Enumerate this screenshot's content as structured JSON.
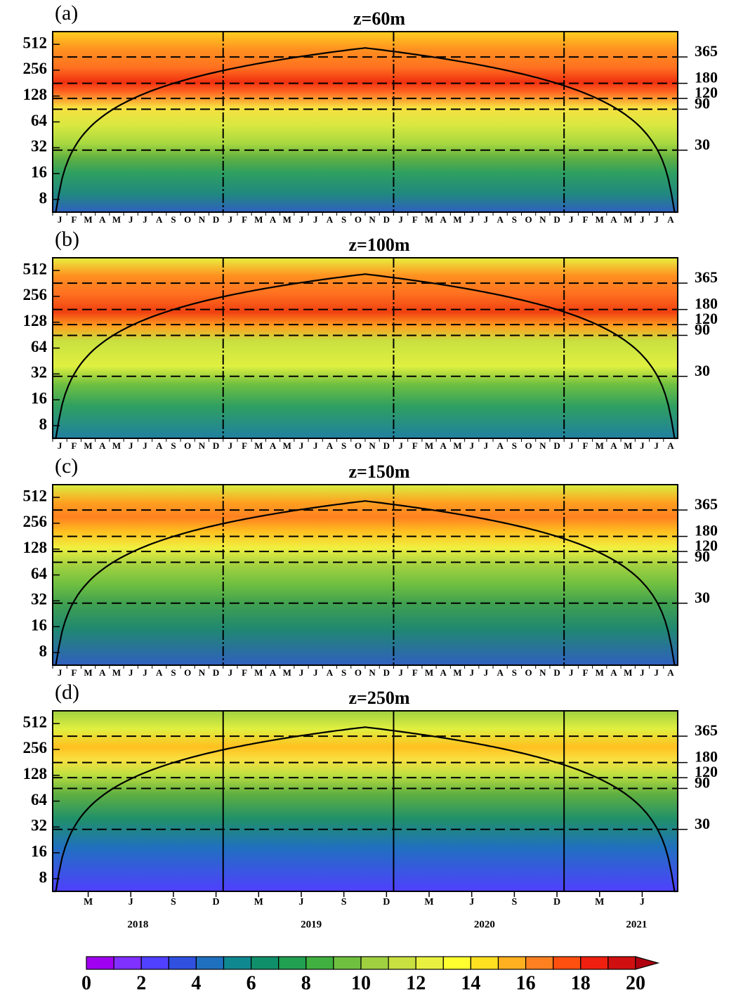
{
  "chart_data": [
    {
      "type": "heatmap",
      "panel_label": "(a)",
      "title": "z=60m",
      "log_scale": true,
      "ylim": [
        5.7,
        720
      ],
      "yticks": [
        8,
        16,
        32,
        64,
        128,
        256,
        512
      ],
      "y2ticks": [
        30,
        90,
        120,
        180,
        365
      ],
      "categories": [
        "J",
        "F",
        "M",
        "A",
        "M",
        "J",
        "J",
        "A",
        "S",
        "O",
        "N",
        "D",
        "J",
        "F",
        "M",
        "A",
        "M",
        "J",
        "J",
        "A",
        "S",
        "O",
        "N",
        "D",
        "J",
        "F",
        "M",
        "A",
        "M",
        "J",
        "J",
        "A",
        "S",
        "O",
        "N",
        "D",
        "J",
        "F",
        "M",
        "A",
        "M",
        "J",
        "J",
        "A"
      ]
    },
    {
      "type": "heatmap",
      "panel_label": "(b)",
      "title": "z=100m",
      "log_scale": true,
      "ylim": [
        5.7,
        720
      ],
      "yticks": [
        8,
        16,
        32,
        64,
        128,
        256,
        512
      ],
      "y2ticks": [
        30,
        90,
        120,
        180,
        365
      ],
      "categories": [
        "J",
        "F",
        "M",
        "A",
        "M",
        "J",
        "J",
        "A",
        "S",
        "O",
        "N",
        "D",
        "J",
        "F",
        "M",
        "A",
        "M",
        "J",
        "J",
        "A",
        "S",
        "O",
        "N",
        "D",
        "J",
        "F",
        "M",
        "A",
        "M",
        "J",
        "J",
        "A",
        "S",
        "O",
        "N",
        "D",
        "J",
        "F",
        "M",
        "A",
        "M",
        "J",
        "J",
        "A"
      ]
    },
    {
      "type": "heatmap",
      "panel_label": "(c)",
      "title": "z=150m",
      "log_scale": true,
      "ylim": [
        5.7,
        720
      ],
      "yticks": [
        8,
        16,
        32,
        64,
        128,
        256,
        512
      ],
      "y2ticks": [
        30,
        90,
        120,
        180,
        365
      ],
      "categories": [
        "J",
        "F",
        "M",
        "A",
        "M",
        "J",
        "J",
        "A",
        "S",
        "O",
        "N",
        "D",
        "J",
        "F",
        "M",
        "A",
        "M",
        "J",
        "J",
        "A",
        "S",
        "O",
        "N",
        "D",
        "J",
        "F",
        "M",
        "A",
        "M",
        "J",
        "J",
        "A",
        "S",
        "O",
        "N",
        "D",
        "J",
        "F",
        "M",
        "A",
        "M",
        "J",
        "J",
        "A"
      ]
    },
    {
      "type": "heatmap",
      "panel_label": "(d)",
      "title": "z=250m",
      "log_scale": true,
      "ylim": [
        5.7,
        720
      ],
      "yticks": [
        8,
        16,
        32,
        64,
        128,
        256,
        512
      ],
      "y2ticks": [
        30,
        90,
        120,
        180,
        365
      ],
      "xlim": [
        0,
        44
      ],
      "xticks": [
        {
          "value": 2.5,
          "label": "M"
        },
        {
          "value": 5.5,
          "label": "J"
        },
        {
          "value": 8.5,
          "label": "S"
        },
        {
          "value": 11.5,
          "label": "D"
        },
        {
          "value": 14.5,
          "label": "M"
        },
        {
          "value": 17.5,
          "label": "J"
        },
        {
          "value": 20.5,
          "label": "S"
        },
        {
          "value": 23.5,
          "label": "D"
        },
        {
          "value": 26.5,
          "label": "M"
        },
        {
          "value": 29.5,
          "label": "J"
        },
        {
          "value": 32.5,
          "label": "S"
        },
        {
          "value": 35.5,
          "label": "D"
        },
        {
          "value": 38.5,
          "label": "M"
        },
        {
          "value": 41.5,
          "label": "J"
        }
      ],
      "years": [
        {
          "value": 6,
          "label": "2018"
        },
        {
          "value": 18.2,
          "label": "2019"
        },
        {
          "value": 30.4,
          "label": "2020"
        },
        {
          "value": 41.1,
          "label": "2021"
        }
      ]
    }
  ],
  "colorbar": {
    "lim": [
      0,
      20
    ],
    "ticks": [
      0,
      2,
      4,
      6,
      8,
      10,
      12,
      14,
      16,
      18,
      20
    ],
    "colors": [
      "#a000f0",
      "#8030ff",
      "#5040ff",
      "#3050e0",
      "#2070c0",
      "#108890",
      "#10906a",
      "#20a050",
      "#40b040",
      "#70c040",
      "#a0d040",
      "#c8e040",
      "#e8f040",
      "#ffff30",
      "#ffe020",
      "#ffb020",
      "#ff8020",
      "#ff5010",
      "#f02010",
      "#d01010",
      "#b00010"
    ]
  }
}
